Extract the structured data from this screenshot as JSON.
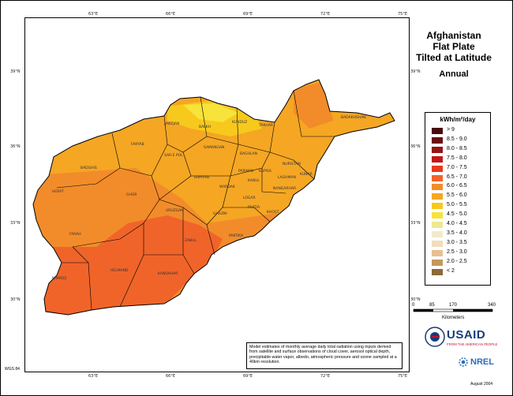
{
  "title_lines": [
    "Afghanistan",
    "Flat Plate",
    "Tilted at Latitude"
  ],
  "subtitle": "Annual",
  "legend": {
    "unit": "kWh/m²/day",
    "classes": [
      {
        "label": "> 9",
        "color": "#4a0a0a"
      },
      {
        "label": "8.5 - 9.0",
        "color": "#6b0f0f"
      },
      {
        "label": "8.0 - 8.5",
        "color": "#951414"
      },
      {
        "label": "7.5 - 8.0",
        "color": "#c21616"
      },
      {
        "label": "7.0 - 7.5",
        "color": "#e83a1c"
      },
      {
        "label": "6.5 - 7.0",
        "color": "#f0642a"
      },
      {
        "label": "6.0 - 6.5",
        "color": "#f28c2a"
      },
      {
        "label": "5.5 - 6.0",
        "color": "#f5a623"
      },
      {
        "label": "5.0 - 5.5",
        "color": "#f7c91c"
      },
      {
        "label": "4.5 - 5.0",
        "color": "#f7e33a"
      },
      {
        "label": "4.0 - 4.5",
        "color": "#efe88f"
      },
      {
        "label": "3.5 - 4.0",
        "color": "#f1eacb"
      },
      {
        "label": "3.0 - 3.5",
        "color": "#f2dcbc"
      },
      {
        "label": "2.5 - 3.0",
        "color": "#e7c08f"
      },
      {
        "label": "2.0 - 2.5",
        "color": "#c49a5a"
      },
      {
        "label": "< 2",
        "color": "#8b6a35"
      }
    ]
  },
  "axes": {
    "lon_top": [
      "63°E",
      "66°E",
      "69°E",
      "72°E",
      "75°E"
    ],
    "lon_bottom": [
      "63°E",
      "66°E",
      "69°E",
      "72°E",
      "75°E"
    ],
    "lat_left": [
      "39°N",
      "36°N",
      "33°N",
      "30°N"
    ],
    "lat_right": [
      "39°N",
      "36°N",
      "33°N",
      "30°N"
    ]
  },
  "scale_bar": {
    "ticks": [
      "0",
      "85",
      "170",
      "340"
    ],
    "unit": "Kilometers"
  },
  "note": "Model estimates of monthly average daily total radiation using inputs derived from satellite and surface observations of cloud cover, aerosol optical depth, precipitable water vapor, albedo, atmospheric pressure and ozone sampled at a 40km resolution.",
  "logos": {
    "usaid": "USAID",
    "usaid_tagline": "FROM THE AMERICAN PEOPLE",
    "nrel": "NREL"
  },
  "footer_left": "WGS 84",
  "footer_right": "August 2004",
  "provinces": [
    "BADAKHSHAN",
    "JAWZJAN",
    "BALKH",
    "KUNDUZ",
    "TAKHAR",
    "FARYAB",
    "SAMANGAN",
    "BAGHLAN",
    "SAR-E POL",
    "BADGHIS",
    "NURISTAN",
    "KAPISA",
    "PARWAN",
    "BAMYAN",
    "KUNAR",
    "LAGHMAN",
    "KABUL",
    "WARDAK",
    "NANGARHAR",
    "HERAT",
    "GHOR",
    "LOGAR",
    "PAKTIA",
    "KHOST",
    "URUZGAN",
    "GHAZNI",
    "FARAH",
    "ZABUL",
    "PAKTIKA",
    "NIMROZ",
    "HELMAND",
    "KANDAHAR"
  ],
  "colors": {
    "water": "#c8daf0",
    "land_outside": "#ffffff",
    "border": "#000000"
  }
}
